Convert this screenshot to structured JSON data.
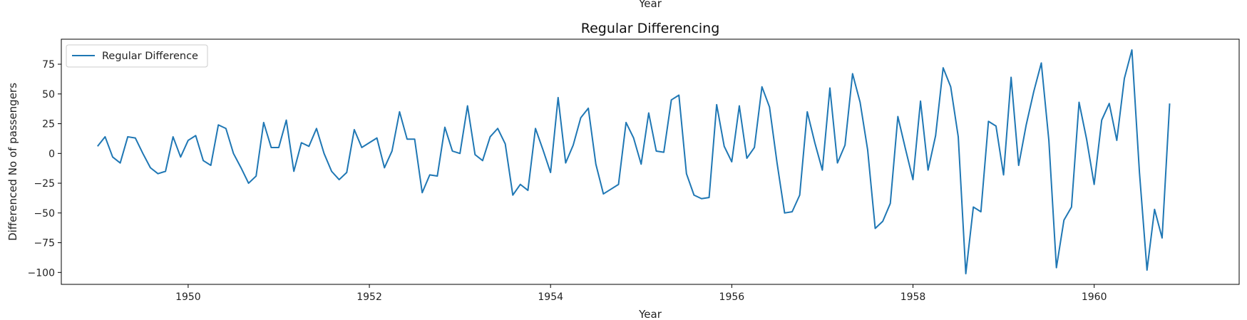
{
  "top_partial_label": "Year",
  "colors": {
    "series": "#1f77b4",
    "axis": "#000000",
    "legend_border": "#cccccc"
  },
  "chart_data": {
    "type": "line",
    "title": "Regular Differencing",
    "xlabel": "Year",
    "ylabel": "Differenced No of passengers",
    "xlim": [
      1948.6,
      1961.6
    ],
    "ylim": [
      -110,
      96
    ],
    "xticks": [
      1950,
      1952,
      1954,
      1956,
      1958,
      1960
    ],
    "yticks": [
      -100,
      -75,
      -50,
      -25,
      0,
      25,
      50,
      75
    ],
    "grid": false,
    "legend_position": "top-left",
    "x_start": 1949.0,
    "x_step": 0.08333,
    "series": [
      {
        "name": "Regular Difference",
        "values": [
          6,
          14,
          -3,
          -8,
          14,
          13,
          0,
          -12,
          -17,
          -15,
          14,
          -3,
          11,
          15,
          -6,
          -10,
          24,
          21,
          0,
          -12,
          -25,
          -19,
          26,
          5,
          5,
          28,
          -15,
          9,
          6,
          21,
          0,
          -15,
          -22,
          -16,
          20,
          5,
          9,
          13,
          -12,
          2,
          35,
          12,
          12,
          -33,
          -18,
          -19,
          22,
          2,
          0,
          40,
          -1,
          -6,
          14,
          21,
          8,
          -35,
          -26,
          -31,
          21,
          3,
          -16,
          47,
          -8,
          7,
          30,
          38,
          -9,
          -34,
          -30,
          -26,
          26,
          13,
          -9,
          34,
          2,
          1,
          45,
          49,
          -17,
          -35,
          -38,
          -37,
          41,
          6,
          -7,
          40,
          -4,
          5,
          56,
          39,
          -8,
          -50,
          -49,
          -35,
          35,
          9,
          -14,
          55,
          -8,
          7,
          67,
          43,
          3,
          -63,
          -57,
          -42,
          31,
          4,
          -22,
          44,
          -14,
          15,
          72,
          56,
          14,
          -101,
          -45,
          -49,
          27,
          23,
          -18,
          64,
          -10,
          24,
          52,
          76,
          11,
          -96,
          -56,
          -45,
          43,
          12,
          -26,
          28,
          42,
          11,
          63,
          87,
          -16,
          -98,
          -47,
          -71,
          42
        ]
      }
    ]
  }
}
